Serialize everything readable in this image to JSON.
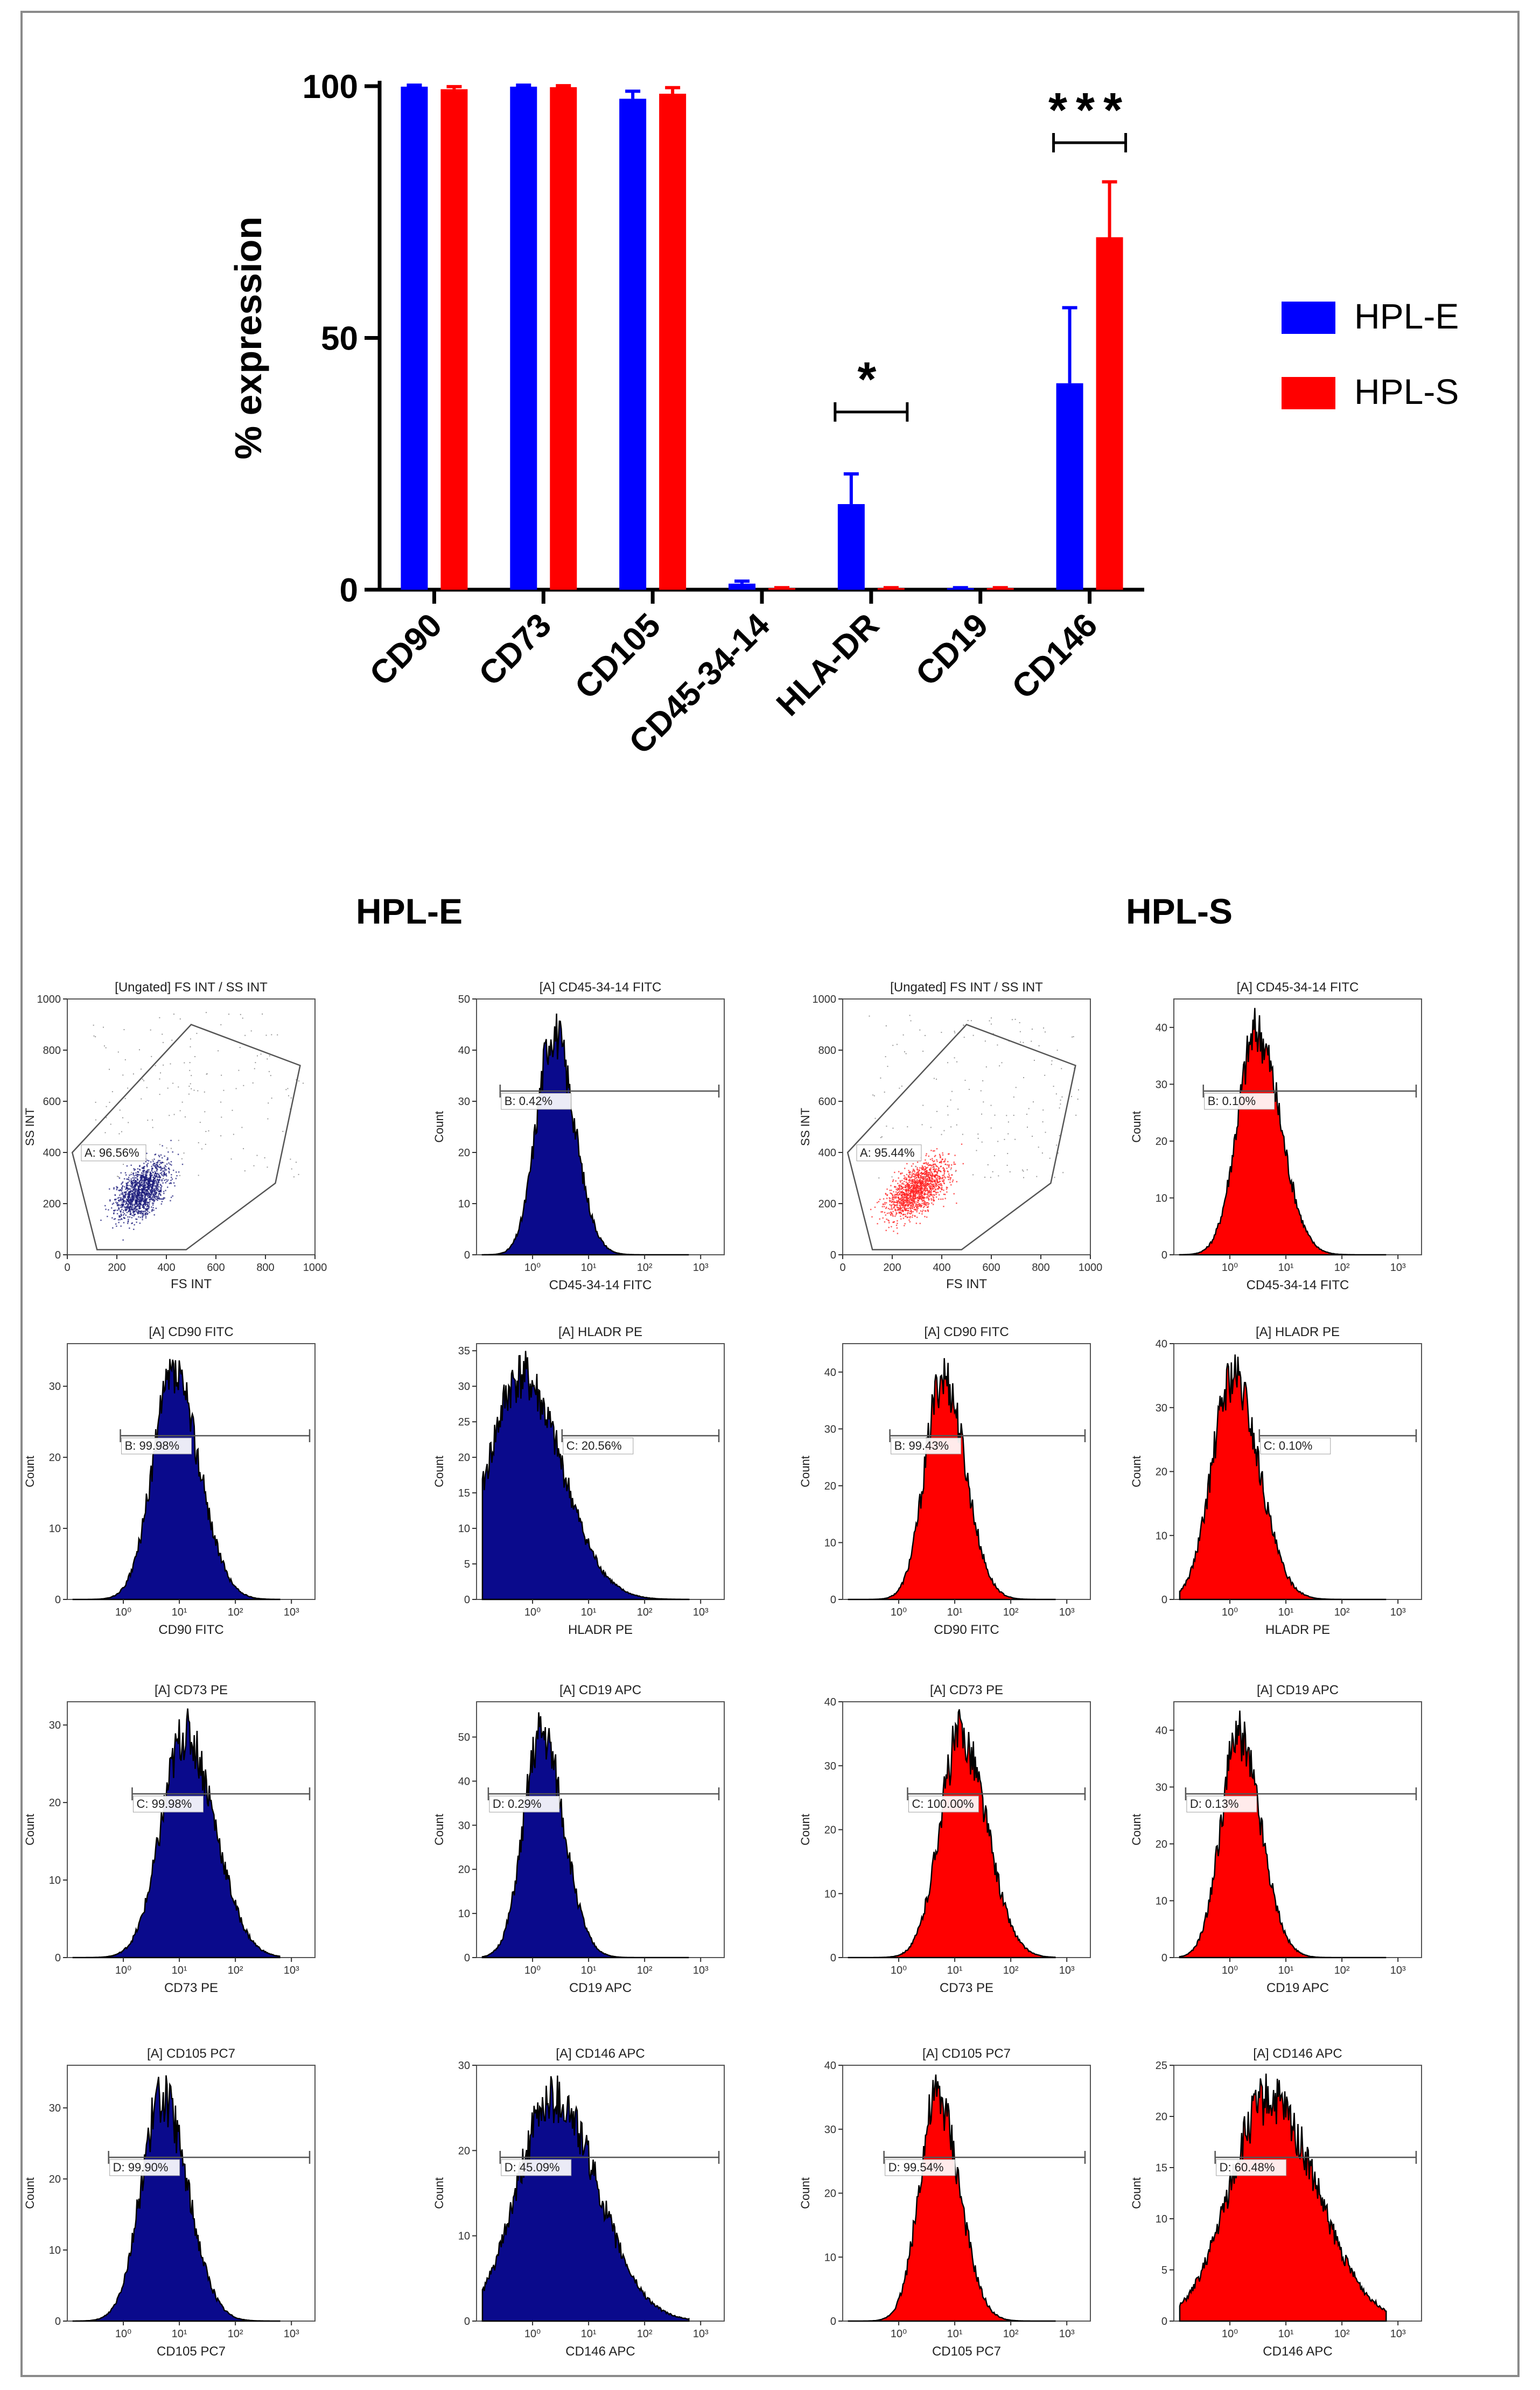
{
  "colors": {
    "hpl_e": "#0000ff",
    "hpl_s": "#ff0000",
    "hist_e": "#0a0a8c",
    "hist_s": "#ff0000",
    "dot_e": "#1a1a7a",
    "dot_s": "#ff2020"
  },
  "chart_data": [
    {
      "type": "bar",
      "title": "",
      "ylabel": "% expression",
      "xlabel": "",
      "ylim": [
        0,
        100
      ],
      "yticks": [
        "0",
        "50",
        "100"
      ],
      "categories": [
        "CD90",
        "CD73",
        "CD105",
        "CD45-34-14",
        "HLA-DR",
        "CD19",
        "CD146"
      ],
      "series": [
        {
          "name": "HPL-E",
          "values": [
            99.9,
            99.9,
            97.5,
            1.2,
            17,
            0.3,
            41
          ],
          "errors": [
            0.3,
            0.3,
            1.5,
            0.5,
            6,
            0.1,
            15
          ]
        },
        {
          "name": "HPL-S",
          "values": [
            99.4,
            99.8,
            98.5,
            0.3,
            0.3,
            0.3,
            70
          ],
          "errors": [
            0.5,
            0.3,
            1.2,
            0.1,
            0.1,
            0.1,
            11
          ]
        }
      ],
      "significance": [
        {
          "category": "HLA-DR",
          "label": "*"
        },
        {
          "category": "CD146",
          "label": "***"
        }
      ],
      "legend": {
        "position": "right",
        "entries": [
          "HPL-E",
          "HPL-S"
        ]
      }
    },
    {
      "type": "flow-cytometry-panels",
      "groups": [
        {
          "heading": "HPL-E",
          "color_key": "hist_e",
          "scatter": {
            "title": "[Ungated] FS INT / SS INT",
            "xlabel": "FS INT",
            "ylabel": "SS INT",
            "gate_label": "A: 96.56%",
            "xticks": [
              "0",
              "200",
              "400",
              "600",
              "800",
              "1000"
            ],
            "yticks": [
              "0",
              "200",
              "400",
              "600",
              "800",
              "1000"
            ]
          },
          "histograms": [
            {
              "title": "[A] CD45-34-14 FITC",
              "xlabel": "CD45-34-14 FITC",
              "gate_label": "B: 0.42%",
              "peak": 0.9,
              "width": 0.28,
              "ymax": 50,
              "yticks": [
                "0",
                "10",
                "20",
                "30",
                "40",
                "50"
              ]
            },
            {
              "title": "[A] CD90 FITC",
              "xlabel": "CD90 FITC",
              "gate_label": "B: 99.98%",
              "peak": 1.4,
              "width": 0.35,
              "ymax": 36,
              "yticks": [
                "0",
                "10",
                "20",
                "30"
              ]
            },
            {
              "title": "[A] HLADR PE",
              "xlabel": "HLADR PE",
              "gate_label": "C: 20.56%",
              "peak": 0.35,
              "width": 0.55,
              "ymax": 36,
              "yticks": [
                "0",
                "5",
                "10",
                "15",
                "20",
                "25",
                "30",
                "35"
              ]
            },
            {
              "title": "[A] CD73 PE",
              "xlabel": "CD73 PE",
              "gate_label": "C: 99.98%",
              "peak": 1.6,
              "width": 0.4,
              "ymax": 33,
              "yticks": [
                "0",
                "10",
                "20",
                "30"
              ]
            },
            {
              "title": "[A] CD19 APC",
              "xlabel": "CD19 APC",
              "gate_label": "D: 0.29%",
              "peak": 0.7,
              "width": 0.3,
              "ymax": 58,
              "yticks": [
                "0",
                "10",
                "20",
                "30",
                "40",
                "50"
              ]
            },
            {
              "title": "[A] CD105 PC7",
              "xlabel": "CD105 PC7",
              "gate_label": "D: 99.90%",
              "peak": 1.2,
              "width": 0.35,
              "ymax": 36,
              "yticks": [
                "0",
                "10",
                "20",
                "30"
              ]
            },
            {
              "title": "[A] CD146 APC",
              "xlabel": "CD146 APC",
              "gate_label": "D: 45.09%",
              "peak": 0.9,
              "width": 0.6,
              "ymax": 30,
              "yticks": [
                "0",
                "10",
                "20",
                "30"
              ]
            }
          ]
        },
        {
          "heading": "HPL-S",
          "color_key": "hist_s",
          "scatter": {
            "title": "[Ungated] FS INT / SS INT",
            "xlabel": "FS INT",
            "ylabel": "SS INT",
            "gate_label": "A: 95.44%",
            "xticks": [
              "0",
              "200",
              "400",
              "600",
              "800",
              "1000"
            ],
            "yticks": [
              "0",
              "200",
              "400",
              "600",
              "800",
              "1000"
            ]
          },
          "histograms": [
            {
              "title": "[A] CD45-34-14 FITC",
              "xlabel": "CD45-34-14 FITC",
              "gate_label": "B: 0.10%",
              "peak": 1.0,
              "width": 0.32,
              "ymax": 45,
              "yticks": [
                "0",
                "10",
                "20",
                "30",
                "40"
              ]
            },
            {
              "title": "[A] CD90 FITC",
              "xlabel": "CD90 FITC",
              "gate_label": "B: 99.43%",
              "peak": 1.3,
              "width": 0.3,
              "ymax": 45,
              "yticks": [
                "0",
                "10",
                "20",
                "30",
                "40"
              ]
            },
            {
              "title": "[A] HLADR PE",
              "xlabel": "HLADR PE",
              "gate_label": "C: 0.10%",
              "peak": 0.6,
              "width": 0.35,
              "ymax": 40,
              "yticks": [
                "0",
                "10",
                "20",
                "30",
                "40"
              ]
            },
            {
              "title": "[A] CD73 PE",
              "xlabel": "CD73 PE",
              "gate_label": "C: 100.00%",
              "peak": 1.6,
              "width": 0.35,
              "ymax": 40,
              "yticks": [
                "0",
                "10",
                "20",
                "30",
                "40"
              ]
            },
            {
              "title": "[A] CD19 APC",
              "xlabel": "CD19 APC",
              "gate_label": "D: 0.13%",
              "peak": 0.7,
              "width": 0.3,
              "ymax": 45,
              "yticks": [
                "0",
                "10",
                "20",
                "30",
                "40"
              ]
            },
            {
              "title": "[A] CD105 PC7",
              "xlabel": "CD105 PC7",
              "gate_label": "D: 99.54%",
              "peak": 1.2,
              "width": 0.3,
              "ymax": 40,
              "yticks": [
                "0",
                "10",
                "20",
                "30",
                "40"
              ]
            },
            {
              "title": "[A] CD146 APC",
              "xlabel": "CD146 APC",
              "gate_label": "D: 60.48%",
              "peak": 1.2,
              "width": 0.65,
              "ymax": 25,
              "yticks": [
                "0",
                "5",
                "10",
                "15",
                "20",
                "25"
              ]
            }
          ]
        }
      ],
      "hist_ylabel": "Count",
      "log_ticks": [
        "10⁰",
        "10¹",
        "10²",
        "10³"
      ]
    }
  ]
}
